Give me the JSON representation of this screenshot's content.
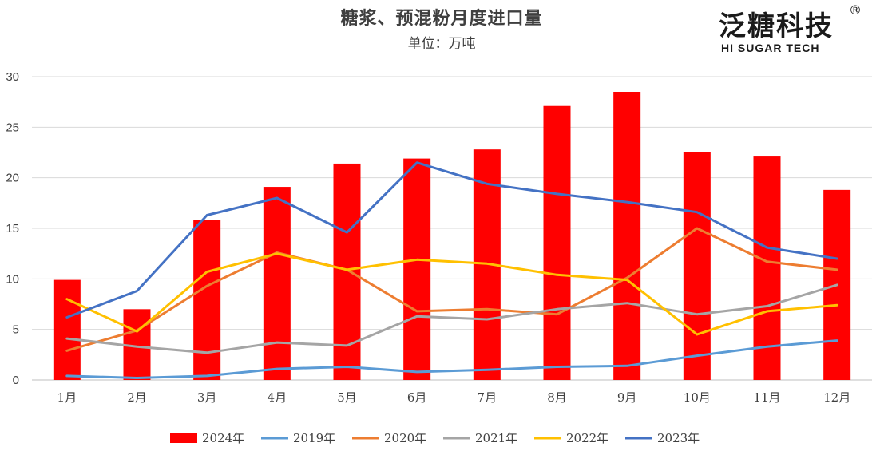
{
  "logo": {
    "cn": "泛糖科技",
    "en": "HI SUGAR TECH",
    "reg": "®"
  },
  "chart_data": {
    "type": "bar+line",
    "title": "糖浆、预混粉月度进口量",
    "subtitle": "单位：万吨",
    "categories": [
      "1月",
      "2月",
      "3月",
      "4月",
      "5月",
      "6月",
      "7月",
      "8月",
      "9月",
      "10月",
      "11月",
      "12月"
    ],
    "ylim": [
      0,
      30
    ],
    "yticks": [
      0,
      5,
      10,
      15,
      20,
      25,
      30
    ],
    "grid": true,
    "legend_position": "bottom",
    "bar_series": {
      "name": "2024年",
      "color": "#ff0000",
      "values": [
        9.9,
        7.0,
        15.8,
        19.1,
        21.4,
        21.9,
        22.8,
        27.1,
        28.5,
        22.5,
        22.1,
        18.8
      ]
    },
    "line_series": [
      {
        "name": "2019年",
        "color": "#5b9bd5",
        "values": [
          0.4,
          0.2,
          0.4,
          1.1,
          1.3,
          0.8,
          1.0,
          1.3,
          1.4,
          2.4,
          3.3,
          3.9
        ]
      },
      {
        "name": "2020年",
        "color": "#ed7d31",
        "values": [
          2.9,
          4.9,
          9.3,
          12.6,
          10.9,
          6.8,
          7.0,
          6.5,
          10.1,
          15.0,
          11.7,
          10.9
        ]
      },
      {
        "name": "2021年",
        "color": "#a5a5a5",
        "values": [
          4.1,
          3.3,
          2.7,
          3.7,
          3.4,
          6.3,
          6.0,
          7.0,
          7.6,
          6.5,
          7.3,
          9.4
        ]
      },
      {
        "name": "2022年",
        "color": "#ffc000",
        "values": [
          8.0,
          4.8,
          10.7,
          12.5,
          10.9,
          11.9,
          11.5,
          10.4,
          9.9,
          4.5,
          6.8,
          7.4
        ]
      },
      {
        "name": "2023年",
        "color": "#4472c4",
        "values": [
          6.2,
          8.8,
          16.3,
          18.0,
          14.6,
          21.5,
          19.4,
          18.4,
          17.6,
          16.6,
          13.1,
          12.0
        ]
      }
    ]
  }
}
